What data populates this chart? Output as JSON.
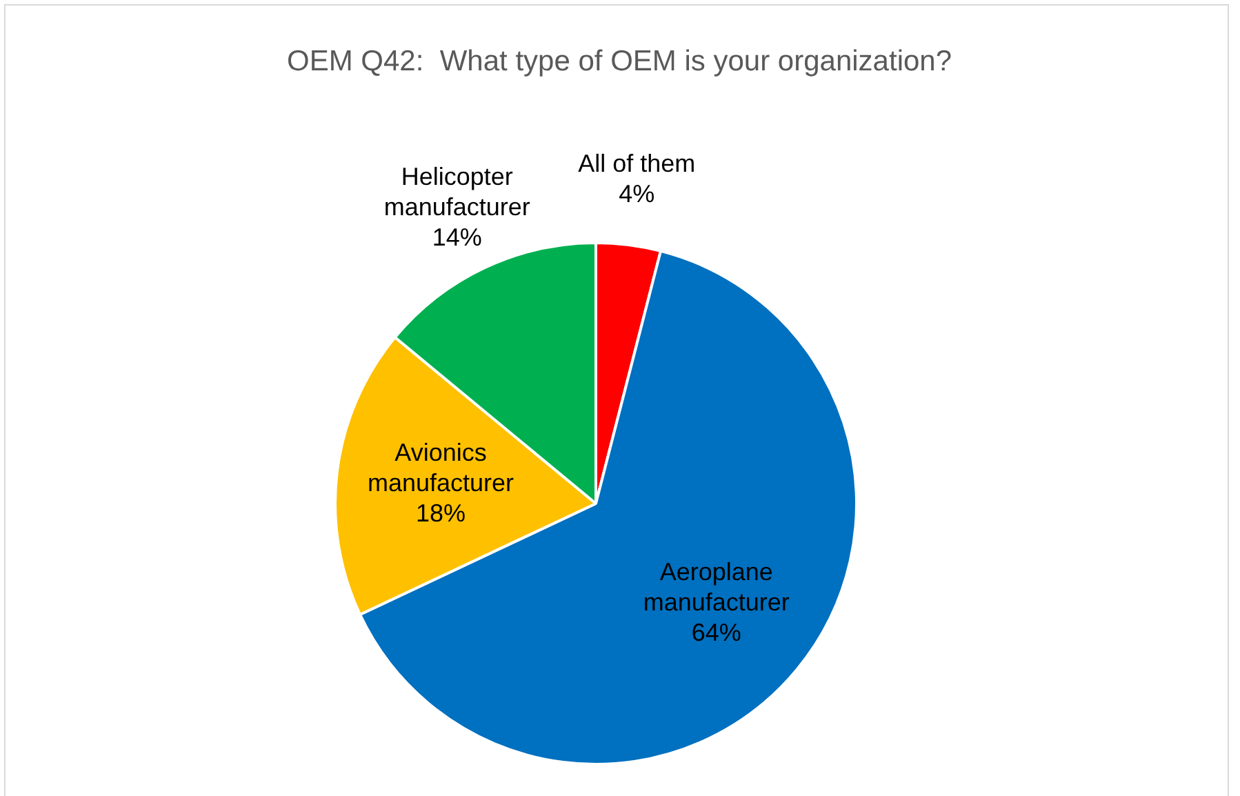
{
  "chart_data": {
    "type": "pie",
    "title": "OEM Q42:  What type of OEM is your organization?",
    "categories": [
      "All of them",
      "Aeroplane manufacturer",
      "Avionics manufacturer",
      "Helicopter manufacturer"
    ],
    "values": [
      4,
      64,
      18,
      14
    ],
    "value_labels": [
      "4%",
      "64%",
      "18%",
      "14%"
    ],
    "colors": [
      "#ff0000",
      "#0070c0",
      "#ffc000",
      "#00b050"
    ],
    "legend": false
  }
}
